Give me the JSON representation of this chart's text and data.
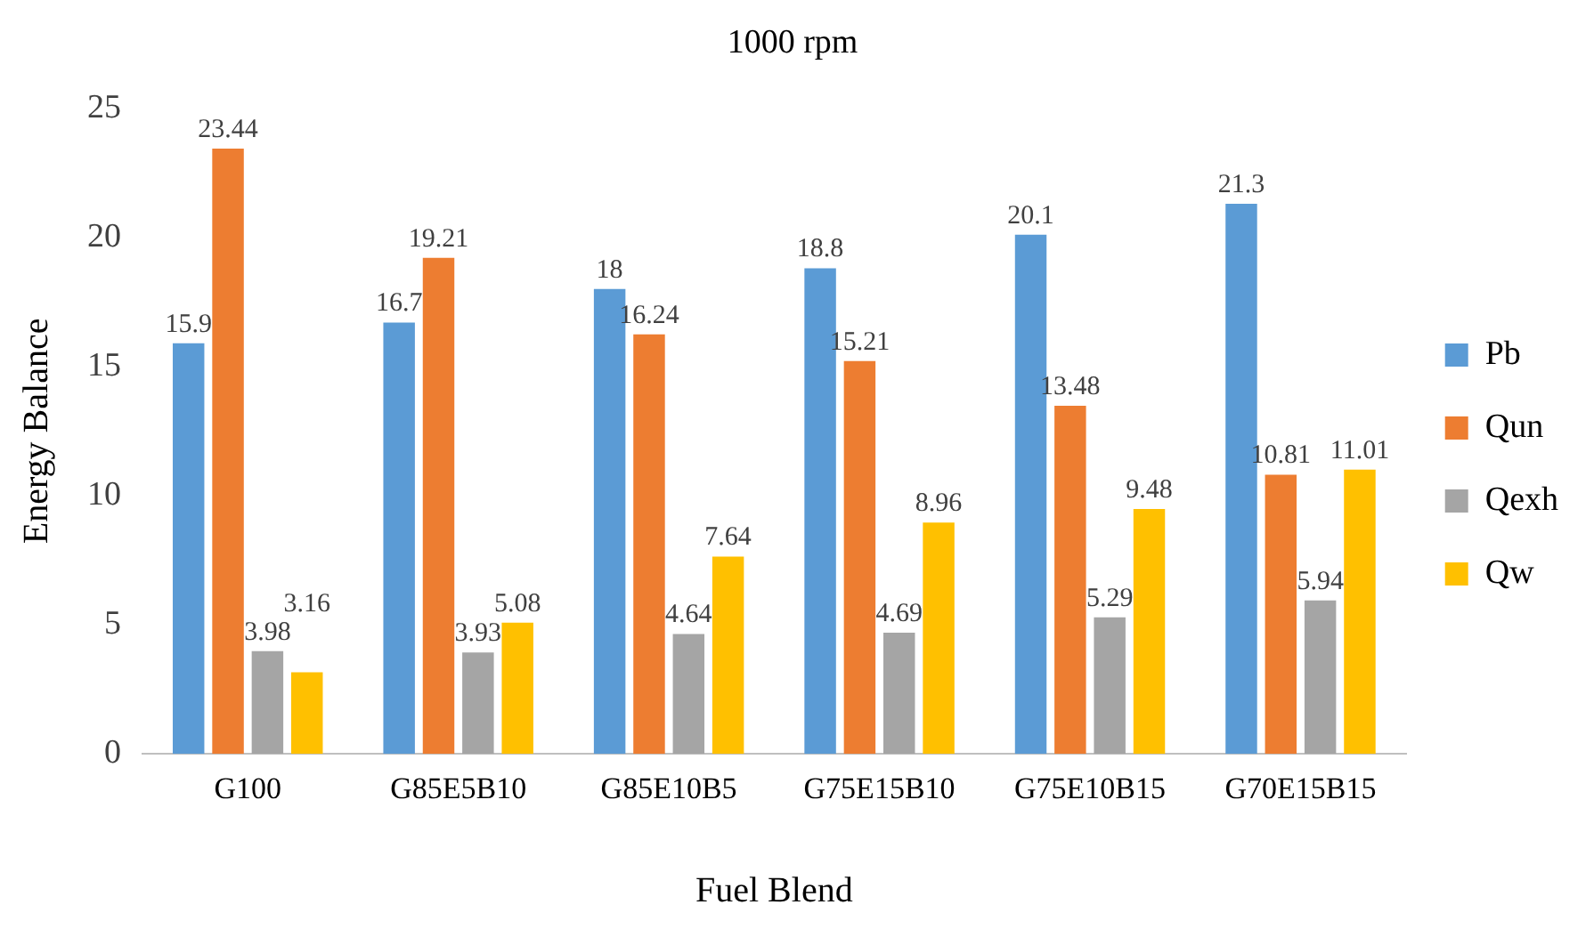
{
  "chart_data": {
    "type": "bar",
    "title": "1000 rpm",
    "xlabel": "Fuel Blend",
    "ylabel": "Energy Balance",
    "categories": [
      "G100",
      "G85E5B10",
      "G85E10B5",
      "G75E15B10",
      "G75E10B15",
      "G70E15B15"
    ],
    "series": [
      {
        "name": "Pb",
        "color": "#5b9bd5",
        "values": [
          15.9,
          16.7,
          18,
          18.8,
          20.1,
          21.3
        ]
      },
      {
        "name": "Qun",
        "color": "#ed7d31",
        "values": [
          23.44,
          19.21,
          16.24,
          15.21,
          13.48,
          10.81
        ]
      },
      {
        "name": "Qexh",
        "color": "#a5a5a5",
        "values": [
          3.98,
          3.93,
          4.64,
          4.69,
          5.29,
          5.94
        ]
      },
      {
        "name": "Qw",
        "color": "#ffc000",
        "values": [
          3.16,
          5.08,
          7.64,
          8.96,
          9.48,
          11.01
        ]
      }
    ],
    "ylim": [
      0,
      25
    ],
    "yticks": [
      0,
      5,
      10,
      15,
      20,
      25
    ],
    "grid": false,
    "legend": "right",
    "data_labels": true
  }
}
